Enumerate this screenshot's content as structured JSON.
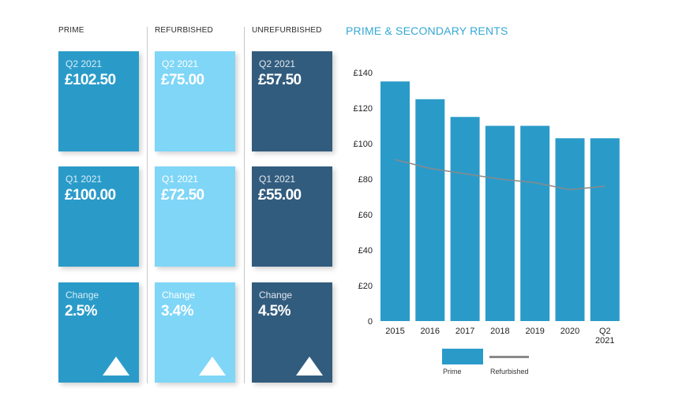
{
  "columns": {
    "prime": {
      "heading": "PRIME",
      "cards": [
        {
          "label": "Q2 2021",
          "value": "£102.50"
        },
        {
          "label": "Q1 2021",
          "value": "£100.00"
        },
        {
          "label": "Change",
          "value": "2.5%"
        }
      ]
    },
    "refurbished": {
      "heading": "REFURBISHED",
      "cards": [
        {
          "label": "Q2 2021",
          "value": "£75.00"
        },
        {
          "label": "Q1 2021",
          "value": "£72.50"
        },
        {
          "label": "Change",
          "value": "3.4%"
        }
      ]
    },
    "unrefurbished": {
      "heading": "UNREFURBISHED",
      "cards": [
        {
          "label": "Q2 2021",
          "value": "£57.50"
        },
        {
          "label": "Q1 2021",
          "value": "£55.00"
        },
        {
          "label": "Change",
          "value": "4.5%"
        }
      ]
    }
  },
  "colors": {
    "prime": "#2a9bc9",
    "refurbished": "#7fd6f7",
    "unrefurbished": "#325c7e",
    "title": "#35a8d4",
    "line": "#8a8a8a"
  },
  "icons": {
    "change": "up-triangle-icon"
  },
  "chart_data": {
    "type": "bar",
    "title": "PRIME & SECONDARY RENTS",
    "categories": [
      "2015",
      "2016",
      "2017",
      "2018",
      "2019",
      "2020",
      "Q2 2021"
    ],
    "series": [
      {
        "name": "Prime",
        "kind": "bar",
        "values": [
          135,
          125,
          115,
          110,
          110,
          103,
          103
        ]
      },
      {
        "name": "Refurbished",
        "kind": "line",
        "values": [
          91,
          86,
          83,
          80,
          78,
          74,
          76
        ]
      }
    ],
    "yticks": [
      "£140",
      "£120",
      "£100",
      "£80",
      "£60",
      "£40",
      "£20",
      "0"
    ],
    "ylim": [
      0,
      140
    ],
    "xlabel": "",
    "ylabel": "",
    "legend": [
      "Prime",
      "Refurbished"
    ],
    "legend_position": "bottom"
  }
}
